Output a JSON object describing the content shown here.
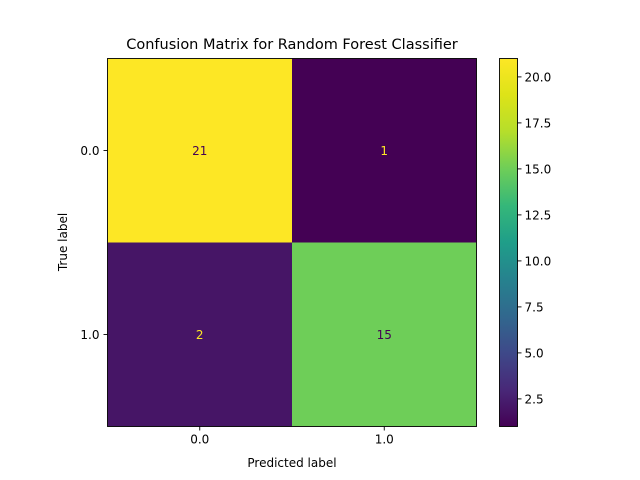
{
  "chart_data": {
    "type": "heatmap",
    "title": "Confusion Matrix for Random Forest Classifier",
    "xlabel": "Predicted label",
    "ylabel": "True label",
    "x_categories": [
      "0.0",
      "1.0"
    ],
    "y_categories": [
      "0.0",
      "1.0"
    ],
    "values": [
      [
        21,
        1
      ],
      [
        2,
        15
      ]
    ],
    "cell_labels": [
      [
        "21",
        "1"
      ],
      [
        "2",
        "15"
      ]
    ],
    "colormap": "viridis",
    "colorbar": {
      "range": [
        1,
        21
      ],
      "ticks": [
        2.5,
        5.0,
        7.5,
        10.0,
        12.5,
        15.0,
        17.5,
        20.0
      ],
      "tick_labels": [
        "2.5",
        "5.0",
        "7.5",
        "10.0",
        "12.5",
        "15.0",
        "17.5",
        "20.0"
      ]
    },
    "cell_text_colors": {
      "on_dark": "#fde725",
      "on_light": "#440154"
    },
    "grid": false
  }
}
